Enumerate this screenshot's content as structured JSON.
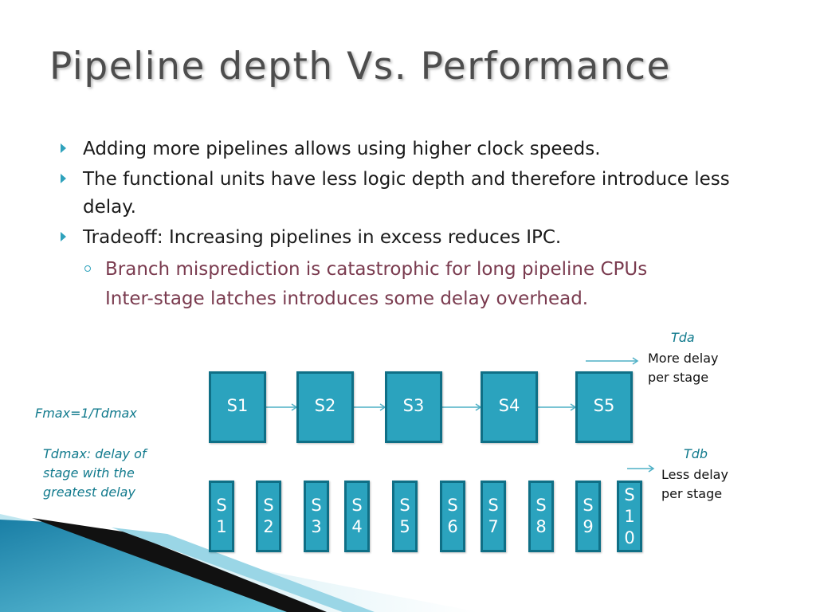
{
  "slide": {
    "title": "Pipeline depth Vs. Performance",
    "bullets": [
      "Adding more pipelines allows using higher clock speeds.",
      "The functional units have less logic depth and therefore introduce less delay.",
      "Tradeoff: Increasing pipelines in excess reduces IPC."
    ],
    "sub_bullets": [
      "Branch misprediction is catastrophic for long pipeline CPUs",
      "Inter-stage latches introduces some delay overhead."
    ]
  },
  "diagram": {
    "top_stages": [
      "S1",
      "S2",
      "S3",
      "S4",
      "S5"
    ],
    "bottom_stages": [
      [
        "S",
        "1"
      ],
      [
        "S",
        "2"
      ],
      [
        "S",
        "3"
      ],
      [
        "S",
        "4"
      ],
      [
        "S",
        "5"
      ],
      [
        "S",
        "6"
      ],
      [
        "S",
        "7"
      ],
      [
        "S",
        "8"
      ],
      [
        "S",
        "9"
      ],
      [
        "S",
        "1",
        "0"
      ]
    ],
    "tda_label": "Tda",
    "tda_note": [
      "More delay",
      "per stage"
    ],
    "tdb_label": "Tdb",
    "tdb_note": [
      "Less delay",
      "per stage"
    ],
    "fmax_label": "Fmax=1/Tdmax",
    "tdmax_note": [
      "Tdmax: delay of",
      "stage with the",
      "greatest delay"
    ]
  },
  "colors": {
    "accent": "#2ba3be",
    "stage_border": "#0f6f86",
    "sub_bullet_text": "#7a3b4f",
    "note_text": "#117a8d"
  }
}
